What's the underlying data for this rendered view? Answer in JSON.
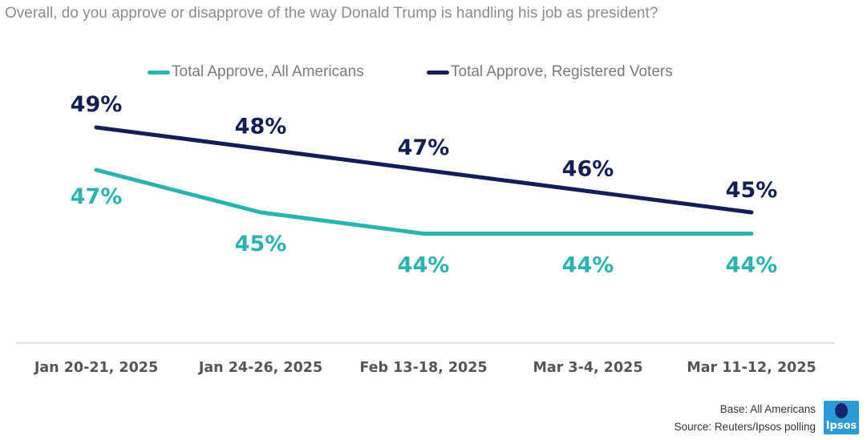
{
  "chart_data": {
    "type": "line",
    "title": "Overall, do you approve or disapprove of the way Donald Trump is handling his job as president?",
    "categories": [
      "Jan 20-21, 2025",
      "Jan 24-26, 2025",
      "Feb 13-18, 2025",
      "Mar 3-4, 2025",
      "Mar 11-12, 2025"
    ],
    "series": [
      {
        "name": "Total Approve, All Americans",
        "color": "#2ab3b1",
        "values": [
          47,
          45,
          44,
          44,
          44
        ],
        "labels": [
          "47%",
          "45%",
          "44%",
          "44%",
          "44%"
        ]
      },
      {
        "name": "Total Approve, Registered Voters",
        "color": "#141e56",
        "values": [
          49,
          48,
          47,
          46,
          45
        ],
        "labels": [
          "49%",
          "48%",
          "47%",
          "46%",
          "45%"
        ]
      }
    ],
    "xlabel": "",
    "ylabel": "",
    "ylim": [
      40,
      50
    ],
    "grid": false,
    "legend": "top"
  },
  "footer": {
    "base": "Base: All Americans",
    "source": "Source: Reuters/Ipsos polling"
  },
  "logo": {
    "text": "Ipsos"
  }
}
